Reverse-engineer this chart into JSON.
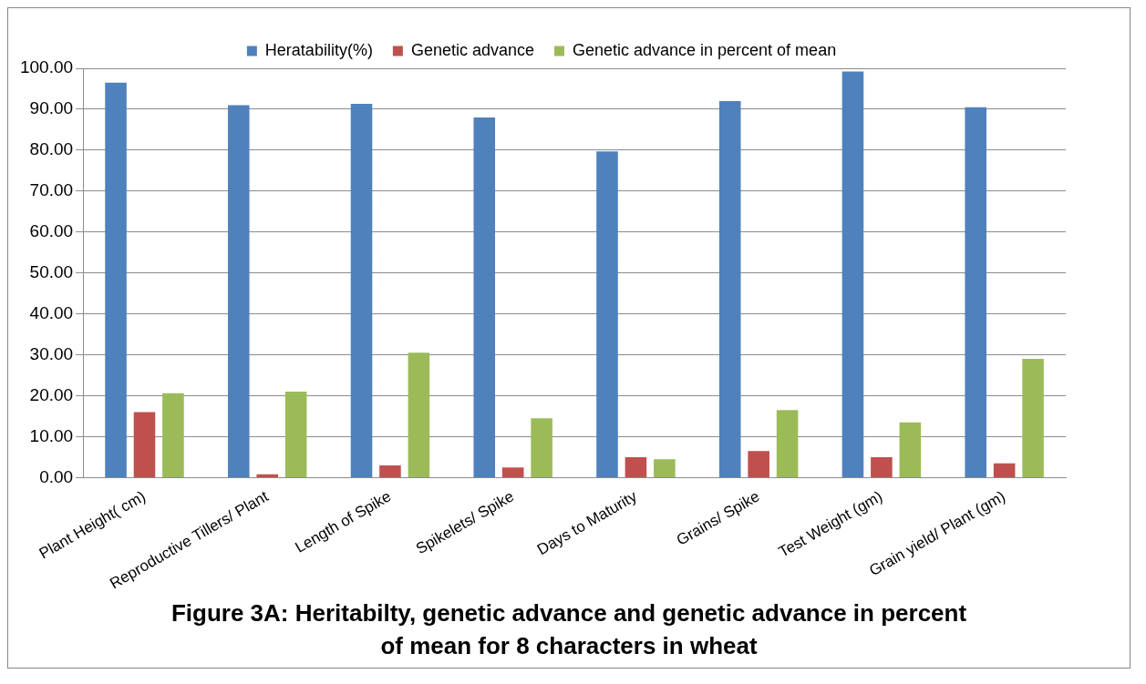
{
  "chart_data": {
    "type": "bar",
    "title": "Figure 3A: Heritabilty, genetic advance and genetic advance in percent of mean for 8 characters in wheat",
    "categories": [
      "Plant Height( cm)",
      "Reproductive Tillers/ Plant",
      "Length of Spike",
      "Spikelets/ Spike",
      "Days to Maturity",
      "Grains/ Spike",
      "Test Weight (gm)",
      "Grain yield/ Plant (gm)"
    ],
    "series": [
      {
        "name": "Heratability(%)",
        "color": "#4f81bd",
        "values": [
          96.5,
          91,
          91.3,
          88,
          79.7,
          92,
          99.2,
          90.5
        ]
      },
      {
        "name": "Genetic advance",
        "color": "#c0504d",
        "values": [
          16,
          0.8,
          3,
          2.5,
          5,
          6.5,
          5,
          3.5
        ]
      },
      {
        "name": "Genetic advance in percent of mean",
        "color": "#9bbb59",
        "values": [
          20.6,
          21,
          30.5,
          14.5,
          4.5,
          16.5,
          13.5,
          29
        ]
      }
    ],
    "ylim": [
      0,
      100
    ],
    "yticks": [
      {
        "value": 0,
        "label": "0.00"
      },
      {
        "value": 10,
        "label": "10.00"
      },
      {
        "value": 20,
        "label": "20.00"
      },
      {
        "value": 30,
        "label": "30.00"
      },
      {
        "value": 40,
        "label": "40.00"
      },
      {
        "value": 50,
        "label": "50.00"
      },
      {
        "value": 60,
        "label": "60.00"
      },
      {
        "value": 70,
        "label": "70.00"
      },
      {
        "value": 80,
        "label": "80.00"
      },
      {
        "value": 90,
        "label": "90.00"
      },
      {
        "value": 100,
        "label": "100.00"
      }
    ],
    "grid": "y",
    "legend": "top"
  }
}
